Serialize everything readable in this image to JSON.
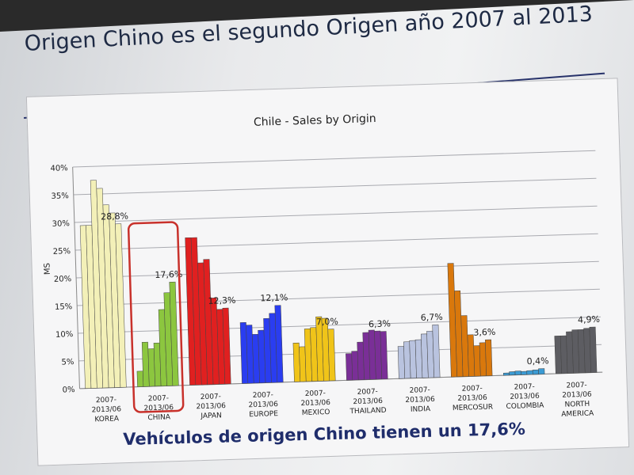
{
  "slide": {
    "title": "Origen Chino es el segundo Origen año 2007 al  2013",
    "footer": "Vehículos de origen Chino tienen un 17,6%"
  },
  "highlight": {
    "category": "CHINA",
    "color": "#c8312b"
  },
  "chart_data": {
    "type": "bar",
    "title": "Chile - Sales by Origin",
    "ylabel": "MS",
    "xlabel": "",
    "ylim": [
      0,
      40
    ],
    "yticks": [
      "0%",
      "5%",
      "10%",
      "15%",
      "20%",
      "25%",
      "30%",
      "35%",
      "40%"
    ],
    "grid": true,
    "legend": "none",
    "period_label": "2007-2013/06",
    "groups": [
      {
        "name": "KOREA",
        "color": "#f3f0b8",
        "values": [
          29.4,
          29.4,
          37.5,
          36.0,
          33.0,
          31.5,
          29.5
        ],
        "label": "28,8%"
      },
      {
        "name": "CHINA",
        "color": "#8cc63f",
        "values": [
          2.8,
          8.0,
          6.8,
          7.8,
          13.8,
          16.8,
          18.7
        ],
        "label": "17,6%"
      },
      {
        "name": "JAPAN",
        "color": "#e02020",
        "values": [
          26.6,
          26.6,
          22.0,
          22.6,
          15.6,
          13.5,
          13.7
        ],
        "label": "12,3%"
      },
      {
        "name": "EUROPE",
        "color": "#2a3df0",
        "values": [
          11.0,
          10.5,
          8.8,
          9.5,
          11.6,
          12.5,
          13.9
        ],
        "label": "12,1%"
      },
      {
        "name": "MEXICO",
        "color": "#f0c419",
        "values": [
          7.0,
          6.3,
          9.5,
          9.7,
          11.6,
          11.3,
          9.3
        ],
        "label": "7,0%"
      },
      {
        "name": "THAILAND",
        "color": "#7a2f97",
        "values": [
          4.8,
          5.2,
          6.8,
          8.5,
          8.9,
          8.7,
          8.6
        ],
        "label": "6,3%"
      },
      {
        "name": "INDIA",
        "color": "#b9c3df",
        "values": [
          5.8,
          6.6,
          6.8,
          6.9,
          7.9,
          8.4,
          9.5
        ],
        "label": "6,7%"
      },
      {
        "name": "MERCOSUR",
        "color": "#d9780c",
        "values": [
          20.5,
          15.5,
          11.0,
          7.5,
          5.5,
          6.0,
          6.5
        ],
        "label": "3,6%"
      },
      {
        "name": "COLOMBIA",
        "color": "#3b9bd4",
        "values": [
          0.4,
          0.6,
          0.7,
          0.6,
          0.7,
          0.8,
          1.0
        ],
        "label": "0,4%"
      },
      {
        "name": "NORTH\nAMERICA",
        "color": "#5d5d62",
        "values": [
          6.8,
          6.8,
          7.5,
          7.8,
          7.8,
          8.0,
          8.2
        ],
        "label": "4,9%"
      }
    ]
  }
}
